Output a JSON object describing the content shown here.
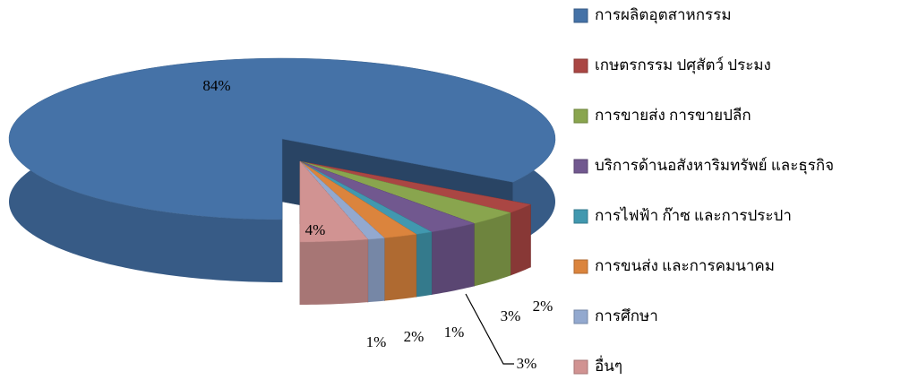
{
  "chart_data": {
    "type": "pie3d",
    "categories": [
      "การผลิตอุตสาหกรรม",
      "เกษตรกรรม ปศุสัตว์ ประมง",
      "การขายส่ง การขายปลีก",
      "บริการด้านอสังหาริมทรัพย์ และธุรกิจ",
      "การไฟฟ้า ก๊าซ และการประปา",
      "การขนส่ง และการคมนาคม",
      "การศึกษา",
      "อื่นๆ"
    ],
    "values": [
      84,
      2,
      3,
      3,
      1,
      2,
      1,
      4
    ],
    "value_labels": [
      "84%",
      "2%",
      "3%",
      "3%",
      "1%",
      "2%",
      "1%",
      "4%"
    ],
    "colors": [
      "#4572a7",
      "#aa4643",
      "#89a54e",
      "#71588f",
      "#4198af",
      "#db843d",
      "#93a9cf",
      "#d19392"
    ],
    "legend": "right"
  }
}
